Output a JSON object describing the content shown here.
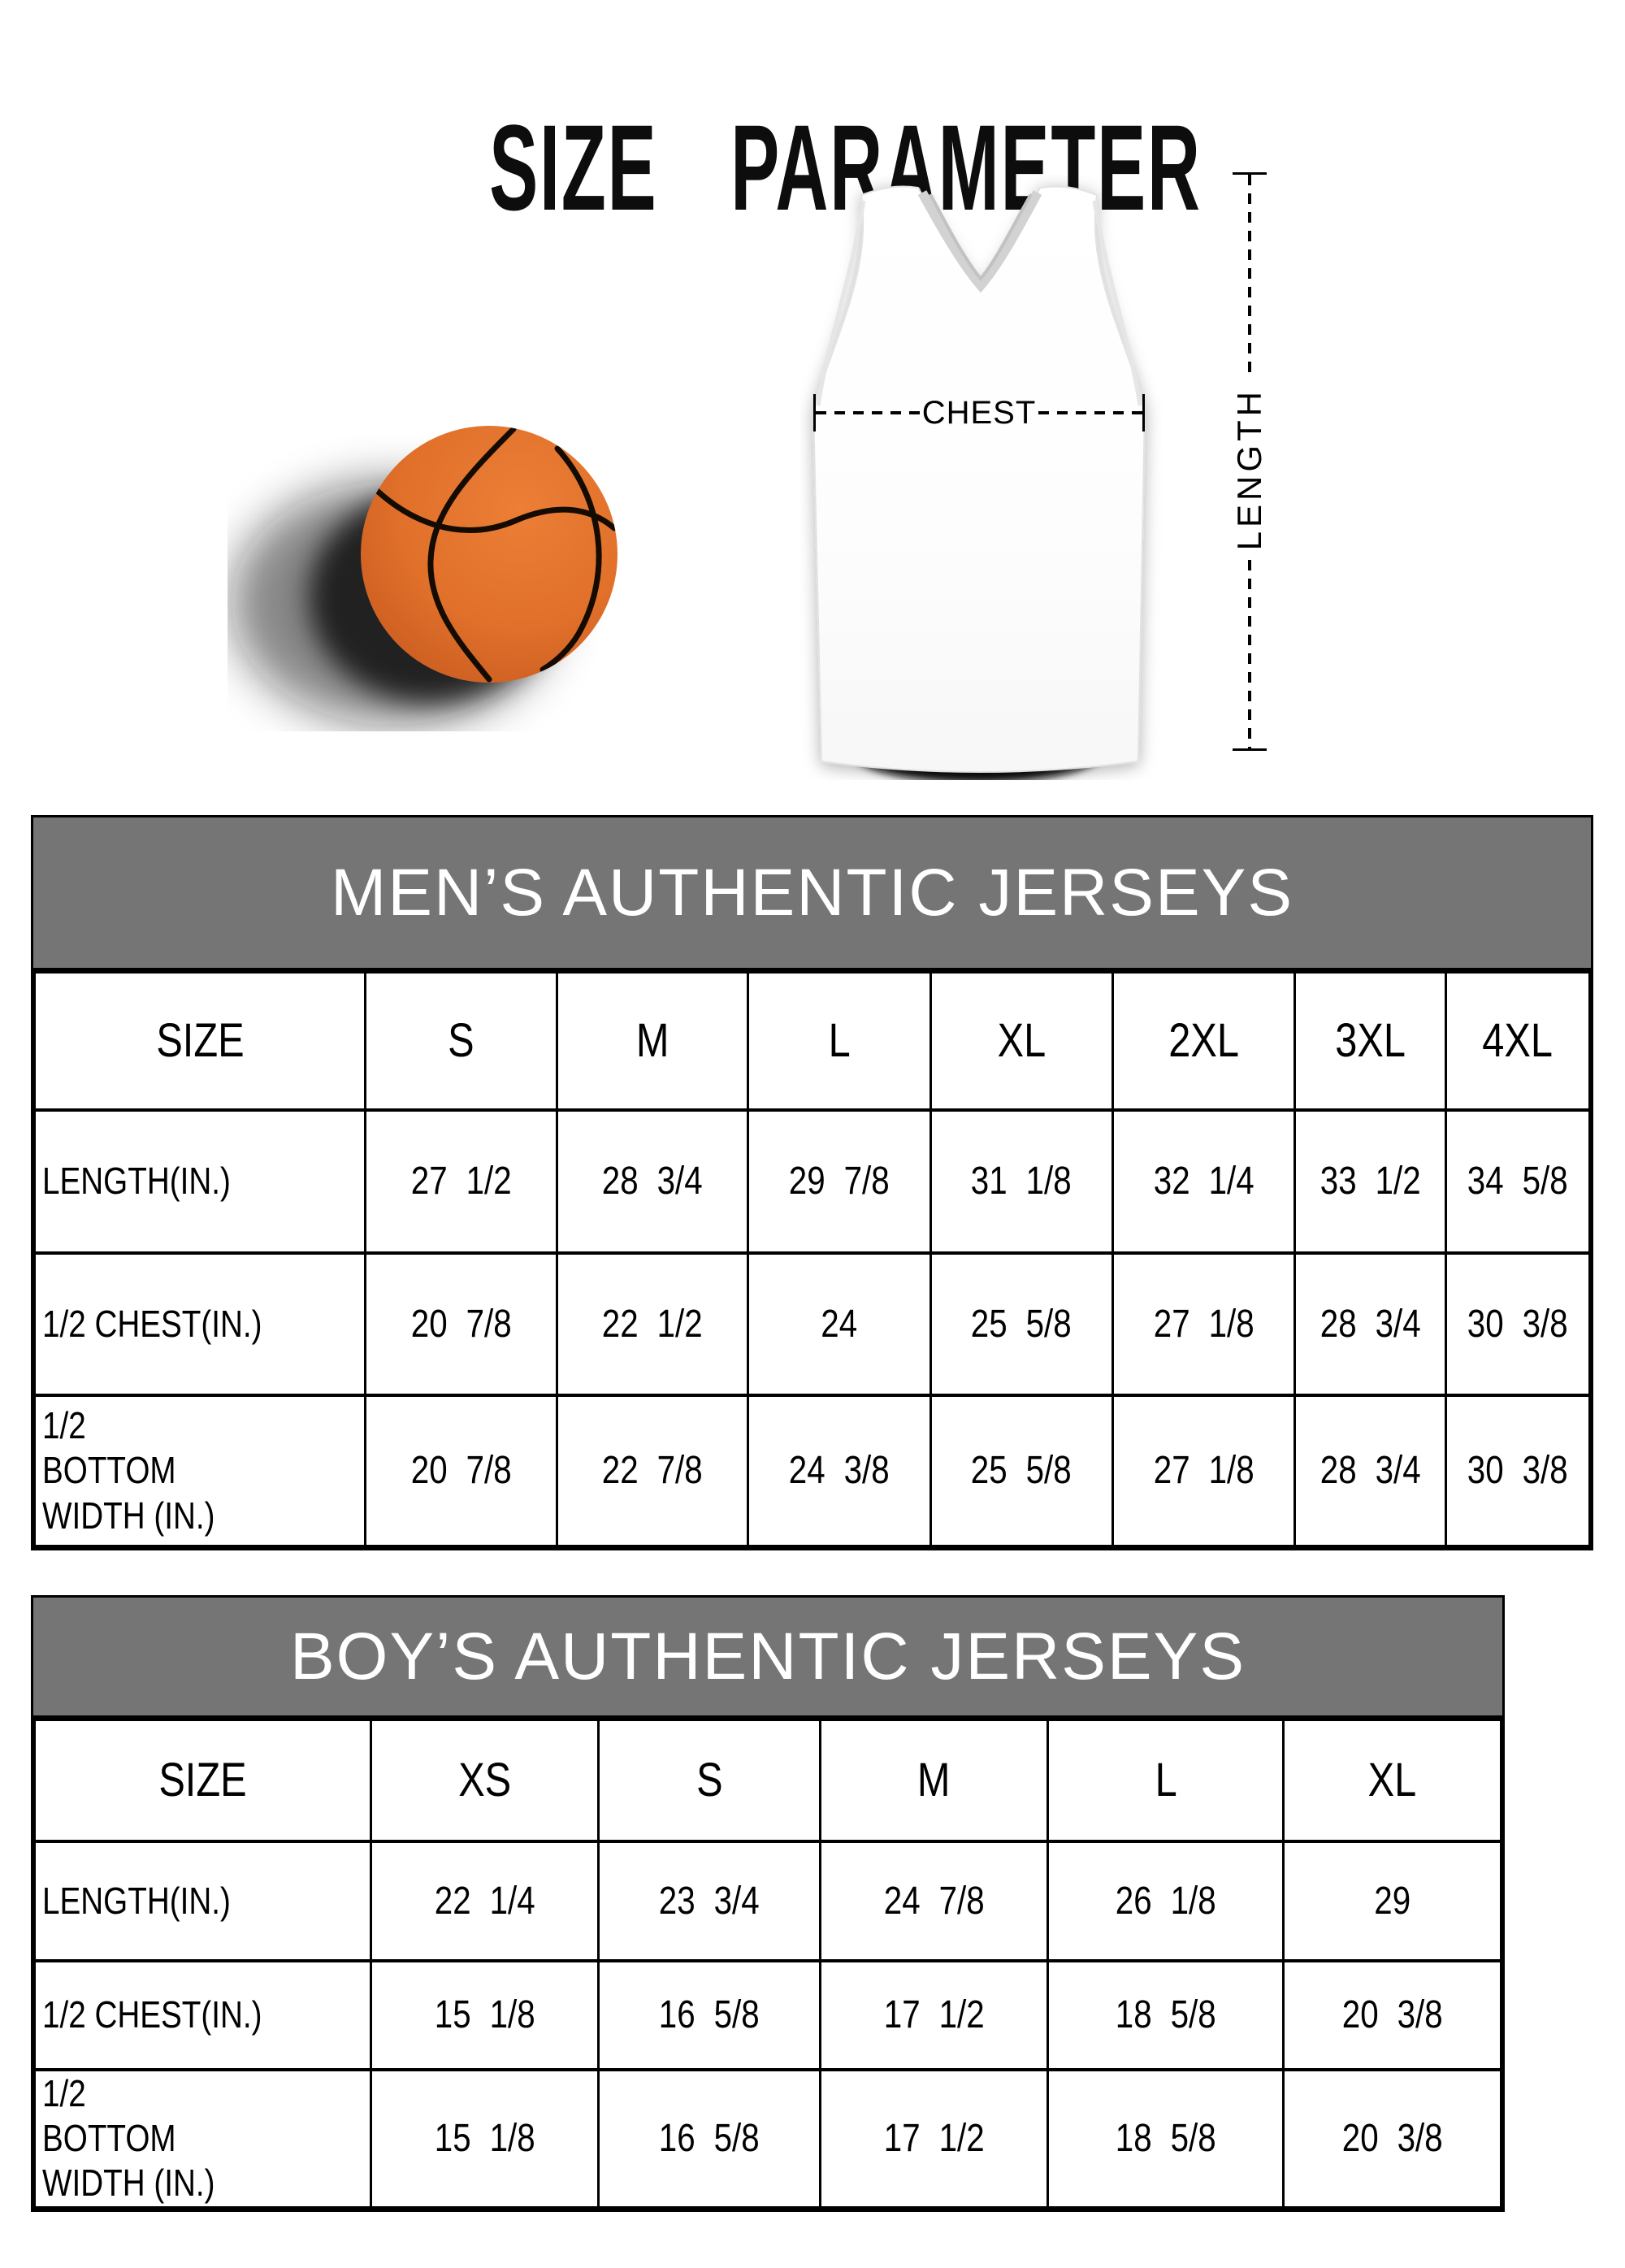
{
  "title": "SIZE PARAMETER",
  "figure": {
    "chest_label": "CHEST",
    "length_label": "LENGTH"
  },
  "colors": {
    "table_header_bg": "#757575",
    "table_header_text": "#ffffff",
    "border": "#000000",
    "title_text": "#0d0d0d",
    "basketball_orange": "#e0702a",
    "basketball_seam": "#140b02"
  },
  "tables": [
    {
      "title": "MEN’S AUTHENTIC JERSEYS",
      "size_row_label": "SIZE",
      "columns": [
        "S",
        "M",
        "L",
        "XL",
        "2XL",
        "3XL",
        "4XL"
      ],
      "rows": [
        {
          "label": "LENGTH(IN.)",
          "values": [
            "27 1/2",
            "28 3/4",
            "29 7/8",
            "31 1/8",
            "32 1/4",
            "33 1/2",
            "34 5/8"
          ]
        },
        {
          "label": "1/2 CHEST(IN.)",
          "values": [
            "20 7/8",
            "22 1/2",
            "24",
            "25 5/8",
            "27 1/8",
            "28 3/4",
            "30 3/8"
          ]
        },
        {
          "label": "1/2 BOTTOM WIDTH (IN.)",
          "values": [
            "20 7/8",
            "22 7/8",
            "24 3/8",
            "25 5/8",
            "27 1/8",
            "28 3/4",
            "30 3/8"
          ]
        }
      ]
    },
    {
      "title": "BOY’S AUTHENTIC JERSEYS",
      "size_row_label": "SIZE",
      "columns": [
        "XS",
        "S",
        "M",
        "L",
        "XL"
      ],
      "rows": [
        {
          "label": "LENGTH(IN.)",
          "values": [
            "22 1/4",
            "23 3/4",
            "24 7/8",
            "26 1/8",
            "29"
          ]
        },
        {
          "label": "1/2 CHEST(IN.)",
          "values": [
            "15 1/8",
            "16 5/8",
            "17 1/2",
            "18 5/8",
            "20 3/8"
          ]
        },
        {
          "label": "1/2 BOTTOM WIDTH (IN.)",
          "values": [
            "15 1/8",
            "16 5/8",
            "17 1/2",
            "18 5/8",
            "20 3/8"
          ]
        }
      ]
    }
  ]
}
